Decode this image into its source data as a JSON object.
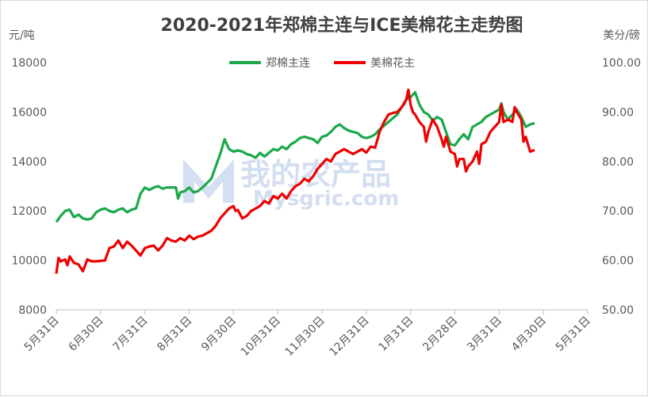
{
  "chart_data": {
    "type": "line",
    "title": "2020-2021年郑棉主连与ICE美棉花主走势图",
    "left_unit": "元/吨",
    "right_unit": "美分/磅",
    "left_ylim": [
      8000,
      18000
    ],
    "right_ylim": [
      50,
      100
    ],
    "left_ticks": [
      "8000",
      "10000",
      "12000",
      "14000",
      "16000",
      "18000"
    ],
    "right_ticks": [
      "50.00",
      "60.00",
      "70.00",
      "80.00",
      "90.00",
      "100.00"
    ],
    "x_ticks": [
      "5月31日",
      "6月30日",
      "7月31日",
      "8月31日",
      "9月30日",
      "10月31日",
      "11月30日",
      "12月31日",
      "1月31日",
      "2月28日",
      "3月31日",
      "4月30日",
      "5月31日"
    ],
    "legend_position": "top-center",
    "grid": false,
    "watermark": {
      "text": "我的农产品",
      "sub": "Mysgric.com"
    },
    "series": [
      {
        "name": "郑棉主连",
        "color": "#1aa84a",
        "axis": "left",
        "points": [
          [
            0,
            11550
          ],
          [
            0.1,
            11800
          ],
          [
            0.2,
            12000
          ],
          [
            0.3,
            12050
          ],
          [
            0.35,
            11900
          ],
          [
            0.4,
            11750
          ],
          [
            0.5,
            11850
          ],
          [
            0.6,
            11700
          ],
          [
            0.7,
            11650
          ],
          [
            0.8,
            11700
          ],
          [
            0.9,
            11950
          ],
          [
            1.0,
            12050
          ],
          [
            1.1,
            12100
          ],
          [
            1.2,
            12000
          ],
          [
            1.3,
            11950
          ],
          [
            1.4,
            12050
          ],
          [
            1.5,
            12100
          ],
          [
            1.6,
            11950
          ],
          [
            1.7,
            12050
          ],
          [
            1.8,
            12100
          ],
          [
            1.9,
            12700
          ],
          [
            2.0,
            12950
          ],
          [
            2.1,
            12850
          ],
          [
            2.2,
            12950
          ],
          [
            2.3,
            13000
          ],
          [
            2.4,
            12900
          ],
          [
            2.5,
            12950
          ],
          [
            2.6,
            12950
          ],
          [
            2.7,
            12950
          ],
          [
            2.75,
            12500
          ],
          [
            2.8,
            12750
          ],
          [
            2.9,
            12800
          ],
          [
            3.0,
            12950
          ],
          [
            3.1,
            12750
          ],
          [
            3.2,
            12800
          ],
          [
            3.3,
            12950
          ],
          [
            3.5,
            13300
          ],
          [
            3.6,
            13800
          ],
          [
            3.7,
            14300
          ],
          [
            3.8,
            14900
          ],
          [
            3.85,
            14700
          ],
          [
            3.9,
            14500
          ],
          [
            4.0,
            14400
          ],
          [
            4.1,
            14450
          ],
          [
            4.2,
            14400
          ],
          [
            4.3,
            14300
          ],
          [
            4.4,
            14250
          ],
          [
            4.5,
            14150
          ],
          [
            4.6,
            14350
          ],
          [
            4.7,
            14200
          ],
          [
            4.8,
            14350
          ],
          [
            4.9,
            14500
          ],
          [
            5.0,
            14450
          ],
          [
            5.1,
            14600
          ],
          [
            5.2,
            14500
          ],
          [
            5.3,
            14700
          ],
          [
            5.4,
            14800
          ],
          [
            5.5,
            14950
          ],
          [
            5.6,
            15000
          ],
          [
            5.7,
            14950
          ],
          [
            5.8,
            14900
          ],
          [
            5.9,
            14750
          ],
          [
            6.0,
            15000
          ],
          [
            6.1,
            15050
          ],
          [
            6.2,
            15200
          ],
          [
            6.3,
            15400
          ],
          [
            6.4,
            15500
          ],
          [
            6.5,
            15350
          ],
          [
            6.6,
            15250
          ],
          [
            6.7,
            15200
          ],
          [
            6.8,
            15150
          ],
          [
            6.9,
            15000
          ],
          [
            7.0,
            14950
          ],
          [
            7.1,
            15000
          ],
          [
            7.2,
            15100
          ],
          [
            7.3,
            15300
          ],
          [
            7.4,
            15450
          ],
          [
            7.5,
            15600
          ],
          [
            7.6,
            15750
          ],
          [
            7.7,
            15900
          ],
          [
            7.8,
            16200
          ],
          [
            7.85,
            16300
          ],
          [
            7.9,
            16500
          ],
          [
            8.0,
            16600
          ],
          [
            8.1,
            16800
          ],
          [
            8.2,
            16300
          ],
          [
            8.3,
            16000
          ],
          [
            8.4,
            15900
          ],
          [
            8.5,
            15650
          ],
          [
            8.6,
            15800
          ],
          [
            8.7,
            15700
          ],
          [
            8.8,
            15200
          ],
          [
            8.9,
            14700
          ],
          [
            9.0,
            14650
          ],
          [
            9.1,
            14900
          ],
          [
            9.2,
            15100
          ],
          [
            9.3,
            14900
          ],
          [
            9.4,
            15400
          ],
          [
            9.5,
            15500
          ],
          [
            9.6,
            15600
          ],
          [
            9.7,
            15800
          ],
          [
            9.8,
            15900
          ],
          [
            9.9,
            16000
          ],
          [
            10.0,
            16100
          ],
          [
            10.05,
            16350
          ],
          [
            10.1,
            16000
          ],
          [
            10.2,
            15700
          ],
          [
            10.3,
            15900
          ],
          [
            10.4,
            16100
          ],
          [
            10.5,
            15800
          ],
          [
            10.6,
            15400
          ],
          [
            10.7,
            15500
          ],
          [
            10.8,
            15550
          ]
        ]
      },
      {
        "name": "美棉花主",
        "color": "#ee0000",
        "axis": "right",
        "points": [
          [
            0,
            57.3
          ],
          [
            0.05,
            60.5
          ],
          [
            0.1,
            59.8
          ],
          [
            0.2,
            60.2
          ],
          [
            0.25,
            59.0
          ],
          [
            0.3,
            60.8
          ],
          [
            0.4,
            59.5
          ],
          [
            0.5,
            59.2
          ],
          [
            0.6,
            57.8
          ],
          [
            0.7,
            60.2
          ],
          [
            0.8,
            59.8
          ],
          [
            0.9,
            59.8
          ],
          [
            1.0,
            59.9
          ],
          [
            1.1,
            60.0
          ],
          [
            1.2,
            62.5
          ],
          [
            1.3,
            62.8
          ],
          [
            1.4,
            64.0
          ],
          [
            1.5,
            62.5
          ],
          [
            1.6,
            63.8
          ],
          [
            1.7,
            63.0
          ],
          [
            1.8,
            62.0
          ],
          [
            1.9,
            61.0
          ],
          [
            2.0,
            62.5
          ],
          [
            2.1,
            62.8
          ],
          [
            2.2,
            63.0
          ],
          [
            2.3,
            62.0
          ],
          [
            2.4,
            63.0
          ],
          [
            2.5,
            64.5
          ],
          [
            2.6,
            64.0
          ],
          [
            2.7,
            63.8
          ],
          [
            2.8,
            64.5
          ],
          [
            2.9,
            64.0
          ],
          [
            3.0,
            65.0
          ],
          [
            3.1,
            64.3
          ],
          [
            3.2,
            64.8
          ],
          [
            3.3,
            65.0
          ],
          [
            3.4,
            65.5
          ],
          [
            3.5,
            66.0
          ],
          [
            3.6,
            67.0
          ],
          [
            3.7,
            68.5
          ],
          [
            3.8,
            69.5
          ],
          [
            3.9,
            70.5
          ],
          [
            4.0,
            71.0
          ],
          [
            4.05,
            70.0
          ],
          [
            4.1,
            70.2
          ],
          [
            4.2,
            68.5
          ],
          [
            4.3,
            69.0
          ],
          [
            4.4,
            70.0
          ],
          [
            4.5,
            70.5
          ],
          [
            4.6,
            71.0
          ],
          [
            4.7,
            72.0
          ],
          [
            4.8,
            71.5
          ],
          [
            4.9,
            73.0
          ],
          [
            5.0,
            72.5
          ],
          [
            5.1,
            73.5
          ],
          [
            5.2,
            72.5
          ],
          [
            5.3,
            74.0
          ],
          [
            5.4,
            75.0
          ],
          [
            5.5,
            75.5
          ],
          [
            5.6,
            76.5
          ],
          [
            5.7,
            76.0
          ],
          [
            5.8,
            77.0
          ],
          [
            5.9,
            78.5
          ],
          [
            6.0,
            79.5
          ],
          [
            6.1,
            80.5
          ],
          [
            6.2,
            80.0
          ],
          [
            6.3,
            81.5
          ],
          [
            6.4,
            82.0
          ],
          [
            6.5,
            82.5
          ],
          [
            6.6,
            82.0
          ],
          [
            6.7,
            81.5
          ],
          [
            6.8,
            82.0
          ],
          [
            6.9,
            82.5
          ],
          [
            7.0,
            81.8
          ],
          [
            7.1,
            83.0
          ],
          [
            7.2,
            82.8
          ],
          [
            7.3,
            86.0
          ],
          [
            7.4,
            88.0
          ],
          [
            7.5,
            89.5
          ],
          [
            7.6,
            89.8
          ],
          [
            7.7,
            90.0
          ],
          [
            7.8,
            91.0
          ],
          [
            7.9,
            92.5
          ],
          [
            7.95,
            94.5
          ],
          [
            8.0,
            91.5
          ],
          [
            8.05,
            90.0
          ],
          [
            8.1,
            89.5
          ],
          [
            8.2,
            88.0
          ],
          [
            8.3,
            87.0
          ],
          [
            8.35,
            84.0
          ],
          [
            8.4,
            86.0
          ],
          [
            8.5,
            88.5
          ],
          [
            8.6,
            87.0
          ],
          [
            8.7,
            84.5
          ],
          [
            8.75,
            83.0
          ],
          [
            8.8,
            85.0
          ],
          [
            8.9,
            82.0
          ],
          [
            9.0,
            81.5
          ],
          [
            9.05,
            79.0
          ],
          [
            9.1,
            80.5
          ],
          [
            9.2,
            80.5
          ],
          [
            9.25,
            78.0
          ],
          [
            9.3,
            79.0
          ],
          [
            9.4,
            80.0
          ],
          [
            9.5,
            82.0
          ],
          [
            9.55,
            79.5
          ],
          [
            9.6,
            83.5
          ],
          [
            9.7,
            84.0
          ],
          [
            9.8,
            86.0
          ],
          [
            9.9,
            87.0
          ],
          [
            10.0,
            88.0
          ],
          [
            10.05,
            91.5
          ],
          [
            10.1,
            88.0
          ],
          [
            10.2,
            88.5
          ],
          [
            10.3,
            88.0
          ],
          [
            10.35,
            91.0
          ],
          [
            10.4,
            90.0
          ],
          [
            10.5,
            88.5
          ],
          [
            10.55,
            84.0
          ],
          [
            10.6,
            85.0
          ],
          [
            10.65,
            83.5
          ],
          [
            10.7,
            82.0
          ],
          [
            10.8,
            82.3
          ]
        ]
      }
    ]
  }
}
